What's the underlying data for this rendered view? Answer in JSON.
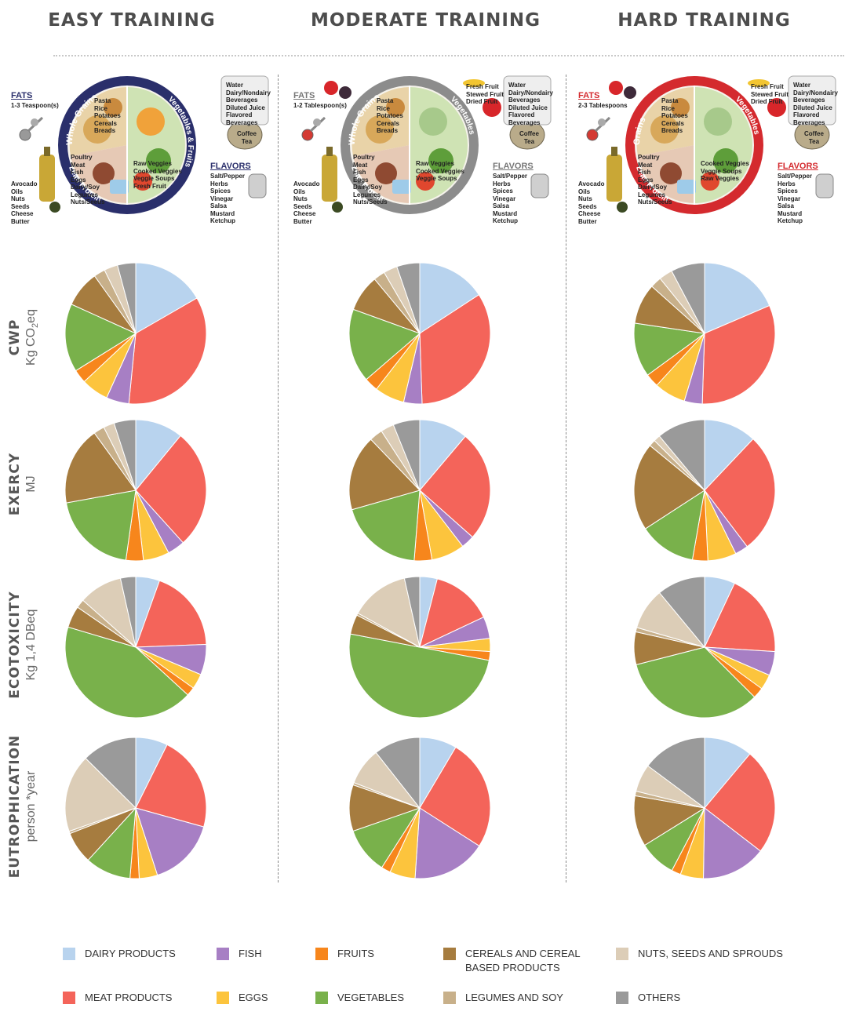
{
  "columns": [
    "EASY TRAINING",
    "MODERATE TRAINING",
    "HARD TRAINING"
  ],
  "rows": [
    {
      "metric": "CWP",
      "unit_prefix": "Kg CO",
      "unit_sub": "2",
      "unit_suffix": "eq"
    },
    {
      "metric": "EXERCY",
      "unit_prefix": "MJ",
      "unit_sub": "",
      "unit_suffix": ""
    },
    {
      "metric": "ECOTOXICITY",
      "unit_prefix": "Kg 1,4 DBeq",
      "unit_sub": "",
      "unit_suffix": ""
    },
    {
      "metric": "EUTROPHICATION",
      "unit_prefix": "person *year",
      "unit_sub": "",
      "unit_suffix": ""
    }
  ],
  "plates": [
    {
      "fats_label": "FATS",
      "fats_amount": "1-3 Teaspoon(s)",
      "grains_label": "Whole Grains",
      "veg_label": "Vegetables & Fruits",
      "protein_label": "Lean Protein",
      "grains_items": "Pasta\nRice\nPotatoes\nCereals\nBreads",
      "protein_items": "Poultry\nMeat\nFish\nEggs\nDairy/Soy\nLegumes\nNuts/Seeds",
      "veg_items": "Raw Veggies\nCooked Veggies\nVeggie Soups\nFresh Fruit",
      "fruit_items": "",
      "drinks": "Water\nDairy/Nondairy\nBeverages\nDiluted Juice\nFlavored\nBeverages",
      "cup_label": "Coffee\nTea",
      "flavors_label": "FLAVORS",
      "flavors_items": "Salt/Pepper\nHerbs\nSpices\nVinegar\nSalsa\nMustard\nKetchup",
      "oils_items": "Avocado\nOils\nNuts\nSeeds\nCheese\nButter",
      "ring_color": "#2a2f6b",
      "label_color": "#2a2f6b"
    },
    {
      "fats_label": "FATS",
      "fats_amount": "1-2 Tablespoon(s)",
      "grains_label": "Whole Grains",
      "veg_label": "Vegetables",
      "protein_label": "Lean Protein",
      "grains_items": "Pasta\nRice\nPotatoes\nCereals\nBreads",
      "protein_items": "Poultry\nMeat\nFish\nEggs\nDairy/Soy\nLegumes\nNuts/Seeds",
      "veg_items": "Raw Veggies\nCooked Veggies\nVeggie Soups",
      "fruit_items": "Fresh Fruit\nStewed Fruit\nDried Fruit",
      "drinks": "Water\nDairy/Nondairy\nBeverages\nDiluted Juice\nFlavored\nBeverages",
      "cup_label": "Coffee\nTea",
      "flavors_label": "FLAVORS",
      "flavors_items": "Salt/Pepper\nHerbs\nSpices\nVinegar\nSalsa\nMustard\nKetchup",
      "oils_items": "Avocado\nOils\nNuts\nSeeds\nCheese\nButter",
      "ring_color": "#8c8c8c",
      "label_color": "#777777"
    },
    {
      "fats_label": "FATS",
      "fats_amount": "2-3 Tablespoons",
      "grains_label": "Grains",
      "veg_label": "Vegetables",
      "protein_label": "Lean Protein",
      "grains_items": "Pasta\nRice\nPotatoes\nCereals\nBreads",
      "protein_items": "Poultry\nMeat\nFish\nEggs\nDairy/Soy\nLegumes\nNuts/Seeds",
      "veg_items": "Cooked Veggies\nVeggie Soups\nRaw Veggies",
      "fruit_items": "Fresh Fruit\nStewed Fruit\nDried Fruit",
      "drinks": "Water\nDairy/Nondairy\nBeverages\nDiluted Juice\nFlavored\nBeverages",
      "cup_label": "Coffee\nTea",
      "flavors_label": "FLAVORS",
      "flavors_items": "Salt/Pepper\nHerbs\nSpices\nVinegar\nSalsa\nMustard\nKetchup",
      "oils_items": "Avocado\nOils\nNuts\nSeeds\nCheese\nButter",
      "ring_color": "#d42a2e",
      "label_color": "#d42a2e"
    }
  ],
  "legend": [
    {
      "label": "DAIRY PRODUCTS",
      "color": "#b8d3ee"
    },
    {
      "label": "FISH",
      "color": "#a77fc4"
    },
    {
      "label": "FRUITS",
      "color": "#f7861c"
    },
    {
      "label": "CEREALS AND CEREAL BASED PRODUCTS",
      "color": "#a67c3f"
    },
    {
      "label": "NUTS, SEEDS AND SPROUDS",
      "color": "#dccdb7"
    },
    {
      "label": "MEAT PRODUCTS",
      "color": "#f4645a"
    },
    {
      "label": "EGGS",
      "color": "#fcc43d"
    },
    {
      "label": "VEGETABLES",
      "color": "#79b14b"
    },
    {
      "label": "LEGUMES AND SOY",
      "color": "#c8b08a"
    },
    {
      "label": "OTHERS",
      "color": "#9a9a9a"
    }
  ],
  "chart_data": {
    "type": "pie",
    "slice_order": [
      "DAIRY PRODUCTS",
      "MEAT PRODUCTS",
      "FISH",
      "EGGS",
      "FRUITS",
      "VEGETABLES",
      "CEREALS AND CEREAL BASED PRODUCTS",
      "LEGUMES AND SOY",
      "NUTS, SEEDS AND SPROUDS",
      "OTHERS"
    ],
    "colors": [
      "#b8d3ee",
      "#f4645a",
      "#a77fc4",
      "#fcc43d",
      "#f7861c",
      "#79b14b",
      "#a67c3f",
      "#c8b08a",
      "#dccdb7",
      "#9a9a9a"
    ],
    "pies": [
      {
        "metric": "CWP",
        "training": "EASY TRAINING",
        "values": [
          16,
          33.5,
          5,
          6,
          3,
          15,
          8,
          2.5,
          3,
          4
        ]
      },
      {
        "metric": "CWP",
        "training": "MODERATE TRAINING",
        "values": [
          15,
          32,
          4,
          6.5,
          3,
          16,
          8,
          2.5,
          3,
          5
        ]
      },
      {
        "metric": "CWP",
        "training": "HARD TRAINING",
        "values": [
          18,
          31,
          4,
          7,
          3,
          12,
          9,
          2.5,
          3,
          7.5
        ]
      },
      {
        "metric": "EXERCY",
        "training": "EASY TRAINING",
        "values": [
          11,
          27.5,
          4,
          6,
          4,
          20,
          18,
          2.5,
          2.5,
          5
        ]
      },
      {
        "metric": "EXERCY",
        "training": "MODERATE TRAINING",
        "values": [
          11,
          25,
          3,
          7.5,
          4,
          19,
          17,
          3,
          3,
          6
        ]
      },
      {
        "metric": "EXERCY",
        "training": "HARD TRAINING",
        "values": [
          12,
          27.5,
          3,
          6.5,
          3.5,
          13,
          20,
          1.5,
          1.5,
          11
        ]
      },
      {
        "metric": "ECOTOXICITY",
        "training": "EASY TRAINING",
        "values": [
          5.5,
          19,
          7,
          3.5,
          2,
          43,
          5,
          2,
          10,
          3.5
        ]
      },
      {
        "metric": "ECOTOXICITY",
        "training": "MODERATE TRAINING",
        "values": [
          4,
          14,
          5,
          3,
          2,
          50,
          4.5,
          0.5,
          13.5,
          3.5
        ]
      },
      {
        "metric": "ECOTOXICITY",
        "training": "HARD TRAINING",
        "values": [
          7,
          19,
          5.5,
          3.5,
          2.5,
          33.5,
          7.5,
          1,
          9.5,
          11
        ]
      },
      {
        "metric": "EUTROPHICATION",
        "training": "EASY TRAINING",
        "values": [
          7,
          21,
          15,
          4,
          2,
          10,
          7,
          0.5,
          17,
          12
        ]
      },
      {
        "metric": "EUTROPHICATION",
        "training": "MODERATE TRAINING",
        "values": [
          8,
          24,
          16,
          5.5,
          2,
          10,
          10,
          0.5,
          8,
          10
        ]
      },
      {
        "metric": "EUTROPHICATION",
        "training": "HARD TRAINING",
        "values": [
          10.5,
          23,
          14,
          5,
          2,
          8,
          11,
          1,
          6,
          14
        ]
      }
    ]
  }
}
